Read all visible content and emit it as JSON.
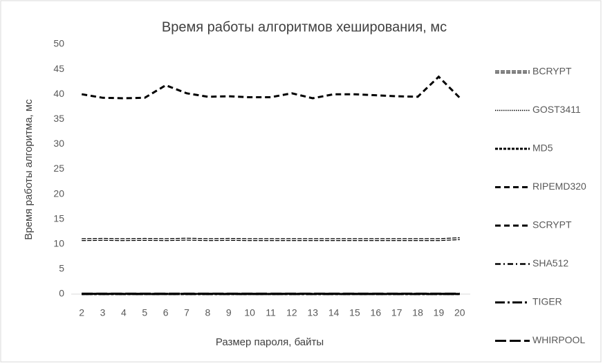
{
  "chart_data": {
    "type": "line",
    "title": "Время работы алгоритмов хеширования, мс",
    "x_label": "Размер пароля, байты",
    "y_label": "Время работы алгоритма, мс",
    "categories": [
      "2",
      "3",
      "4",
      "5",
      "6",
      "7",
      "8",
      "9",
      "10",
      "11",
      "12",
      "13",
      "14",
      "15",
      "16",
      "17",
      "18",
      "19",
      "20"
    ],
    "ylim": [
      0,
      50
    ],
    "yticks": [
      0,
      5,
      10,
      15,
      20,
      25,
      30,
      35,
      40,
      45,
      50
    ],
    "grid": false,
    "legend": "right",
    "series": [
      {
        "name": "BCRYPT",
        "color": "#000000",
        "dash": "double",
        "values": [
          10.9,
          10.95,
          10.9,
          10.95,
          10.9,
          11.0,
          10.9,
          10.95,
          10.9,
          10.9,
          10.9,
          10.9,
          10.9,
          10.9,
          10.9,
          10.9,
          10.9,
          10.9,
          11.1
        ]
      },
      {
        "name": "GOST3411",
        "color": "#000000",
        "dash": "dot",
        "values": [
          0.1,
          0.1,
          0.1,
          0.1,
          0.1,
          0.1,
          0.1,
          0.1,
          0.1,
          0.1,
          0.1,
          0.1,
          0.1,
          0.1,
          0.1,
          0.1,
          0.1,
          0.1,
          0.1
        ]
      },
      {
        "name": "MD5",
        "color": "#000000",
        "dash": "short",
        "values": [
          0.02,
          0.02,
          0.02,
          0.02,
          0.02,
          0.02,
          0.02,
          0.02,
          0.02,
          0.02,
          0.02,
          0.02,
          0.02,
          0.02,
          0.02,
          0.02,
          0.02,
          0.02,
          0.02
        ]
      },
      {
        "name": "RIPEMD320",
        "color": "#000000",
        "dash": "dash",
        "values": [
          0.05,
          0.05,
          0.05,
          0.05,
          0.05,
          0.05,
          0.05,
          0.05,
          0.05,
          0.05,
          0.05,
          0.05,
          0.05,
          0.05,
          0.05,
          0.05,
          0.05,
          0.05,
          0.05
        ]
      },
      {
        "name": "SCRYPT",
        "color": "#000000",
        "dash": "dash",
        "values": [
          40,
          39.3,
          39.2,
          39.3,
          41.8,
          40.2,
          39.5,
          39.6,
          39.4,
          39.4,
          40.2,
          39.2,
          40,
          40,
          39.8,
          39.6,
          39.5,
          43.5,
          39.3
        ]
      },
      {
        "name": "SHA512",
        "color": "#000000",
        "dash": "dashdot",
        "values": [
          0.05,
          0.05,
          0.05,
          0.05,
          0.05,
          0.05,
          0.05,
          0.05,
          0.05,
          0.05,
          0.05,
          0.05,
          0.05,
          0.05,
          0.05,
          0.05,
          0.05,
          0.05,
          0.05
        ]
      },
      {
        "name": "TIGER",
        "color": "#000000",
        "dash": "longdashdot",
        "values": [
          0.02,
          0.02,
          0.02,
          0.02,
          0.02,
          0.02,
          0.02,
          0.02,
          0.02,
          0.02,
          0.02,
          0.02,
          0.02,
          0.02,
          0.02,
          0.02,
          0.02,
          0.02,
          0.02
        ]
      },
      {
        "name": "WHIRPOOL",
        "color": "#000000",
        "dash": "long",
        "values": [
          0.08,
          0.08,
          0.08,
          0.08,
          0.08,
          0.08,
          0.08,
          0.08,
          0.08,
          0.08,
          0.08,
          0.08,
          0.08,
          0.08,
          0.08,
          0.08,
          0.08,
          0.08,
          0.08
        ]
      }
    ]
  }
}
